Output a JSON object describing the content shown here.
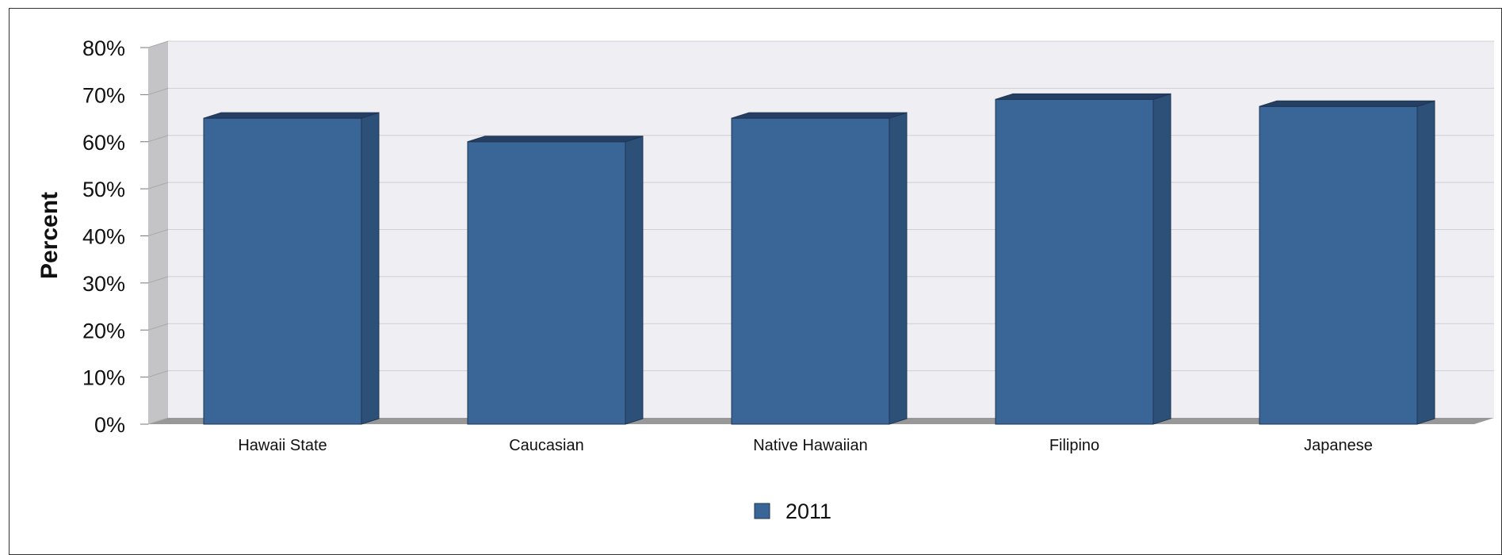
{
  "chart_data": {
    "type": "bar",
    "categories": [
      "Hawaii State",
      "Caucasian",
      "Native Hawaiian",
      "Filipino",
      "Japanese"
    ],
    "series": [
      {
        "name": "2011",
        "values": [
          65,
          60,
          65,
          69,
          67.5
        ]
      }
    ],
    "xlabel": "",
    "ylabel": "Percent",
    "ylim": [
      0,
      80
    ],
    "yticks": [
      "0%",
      "10%",
      "20%",
      "30%",
      "40%",
      "50%",
      "60%",
      "70%",
      "80%"
    ],
    "grid": true,
    "legend": "bottom",
    "colors": {
      "bar_front": "#3a6597",
      "bar_side": "#2d5079",
      "bar_top": "#243f63",
      "plot_back": "#efeef3",
      "left_wall": "#c4c4c6",
      "floor": "#989898",
      "grid": "#cfcfd6"
    }
  }
}
